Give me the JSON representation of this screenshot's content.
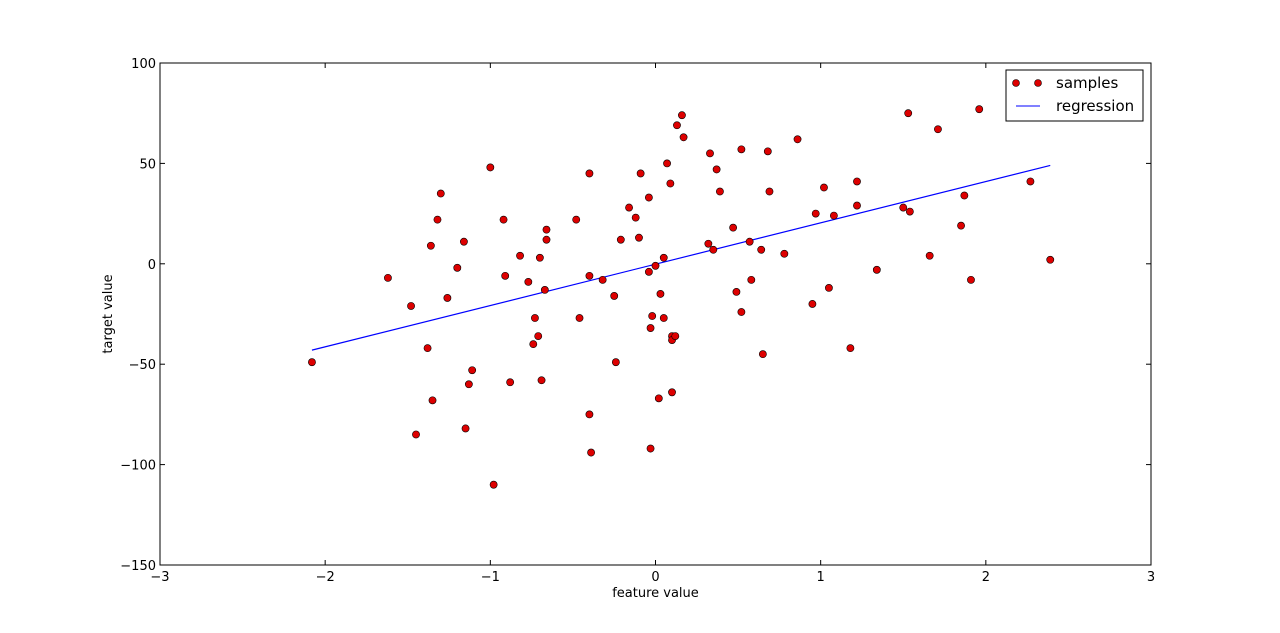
{
  "chart_data": {
    "type": "scatter",
    "title": "",
    "xlabel": "feature value",
    "ylabel": "target value",
    "xlim": [
      -3,
      3
    ],
    "ylim": [
      -150,
      100
    ],
    "xticks": [
      -3,
      -2,
      -1,
      0,
      1,
      2,
      3
    ],
    "yticks": [
      -150,
      -100,
      -50,
      0,
      50,
      100
    ],
    "xtick_labels": [
      "−3",
      "−2",
      "−1",
      "0",
      "1",
      "2",
      "3"
    ],
    "ytick_labels": [
      "−150",
      "−100",
      "−50",
      "0",
      "50",
      "100"
    ],
    "grid": false,
    "legend": {
      "position": "top-right",
      "entries": [
        "samples",
        "regression"
      ]
    },
    "series": [
      {
        "name": "samples",
        "kind": "scatter",
        "color": "#dd0000",
        "edge_color": "#000000",
        "x": [
          -2.08,
          -1.62,
          -1.48,
          -1.45,
          -1.38,
          -1.36,
          -1.35,
          -1.32,
          -1.3,
          -1.26,
          -1.2,
          -1.16,
          -1.15,
          -1.13,
          -1.11,
          -1.0,
          -0.98,
          -0.92,
          -0.91,
          -0.88,
          -0.82,
          -0.77,
          -0.74,
          -0.73,
          -0.71,
          -0.7,
          -0.69,
          -0.67,
          -0.66,
          -0.66,
          -0.48,
          -0.46,
          -0.4,
          -0.4,
          -0.4,
          -0.39,
          -0.32,
          -0.25,
          -0.24,
          -0.21,
          -0.16,
          -0.12,
          -0.1,
          -0.09,
          -0.04,
          -0.04,
          -0.03,
          -0.03,
          -0.02,
          0.0,
          0.02,
          0.03,
          0.05,
          0.05,
          0.07,
          0.09,
          0.1,
          0.1,
          0.1,
          0.12,
          0.13,
          0.16,
          0.17,
          0.32,
          0.33,
          0.35,
          0.37,
          0.39,
          0.47,
          0.49,
          0.52,
          0.52,
          0.57,
          0.58,
          0.64,
          0.65,
          0.68,
          0.69,
          0.78,
          0.86,
          0.95,
          0.97,
          1.02,
          1.05,
          1.08,
          1.18,
          1.22,
          1.22,
          1.34,
          1.5,
          1.53,
          1.54,
          1.66,
          1.71,
          1.85,
          1.87,
          1.91,
          1.96,
          2.27,
          2.39
        ],
        "y": [
          -49,
          -7,
          -21,
          -85,
          -42,
          9,
          -68,
          22,
          35,
          -17,
          -2,
          11,
          -82,
          -60,
          -53,
          48,
          -110,
          22,
          -6,
          -59,
          4,
          -9,
          -40,
          -27,
          -36,
          3,
          -58,
          -13,
          17,
          12,
          22,
          -27,
          45,
          -6,
          -75,
          -94,
          -8,
          -16,
          -49,
          12,
          28,
          23,
          13,
          45,
          -4,
          33,
          -92,
          -32,
          -26,
          -1,
          -67,
          -15,
          3,
          -27,
          50,
          40,
          -36,
          -38,
          -64,
          -36,
          69,
          74,
          63,
          10,
          55,
          7,
          47,
          36,
          18,
          -14,
          57,
          -24,
          11,
          -8,
          7,
          -45,
          56,
          36,
          5,
          62,
          -20,
          25,
          38,
          -12,
          24,
          -42,
          41,
          29,
          -3,
          28,
          75,
          26,
          4,
          67,
          19,
          34,
          -8,
          77,
          41,
          2
        ]
      },
      {
        "name": "regression",
        "kind": "line",
        "color": "#0000ff",
        "x": [
          -2.08,
          2.39
        ],
        "y": [
          -43,
          49
        ]
      }
    ]
  }
}
